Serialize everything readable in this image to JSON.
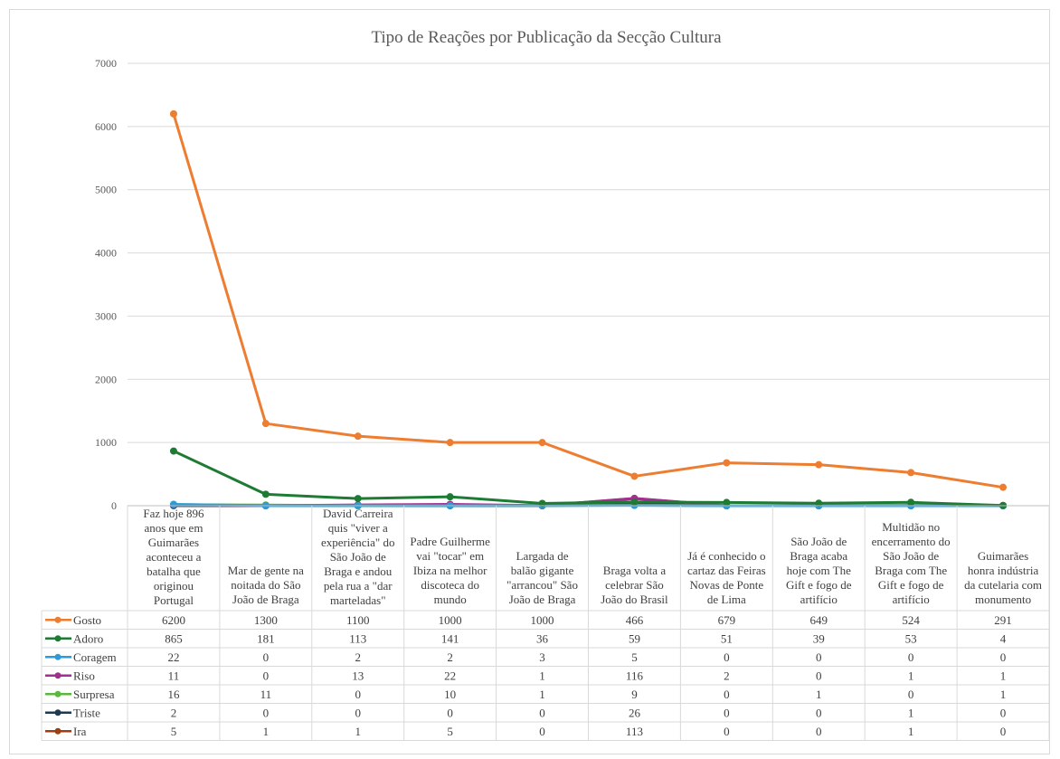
{
  "chart_data": {
    "type": "line",
    "title": "Tipo de Reações por Publicação da Secção Cultura",
    "ylim": [
      0,
      7000
    ],
    "yticks": [
      0,
      1000,
      2000,
      3000,
      4000,
      5000,
      6000,
      7000
    ],
    "grid": true,
    "legend": "data-table",
    "categories": [
      "Faz hoje 896 anos que em Guimarães aconteceu a batalha que originou Portugal",
      "Mar de gente na noitada do São João de Braga",
      "David Carreira quis \"viver a experiência\" do São João de Braga e andou pela rua a \"dar marteladas\"",
      "Padre Guilherme vai \"tocar\" em Ibiza na melhor discoteca do mundo",
      "Largada de balão gigante \"arrancou\" São João de Braga",
      "Braga volta a celebrar São João do Brasil",
      "Já é conhecido o cartaz das Feiras Novas de Ponte de Lima",
      "São João de Braga acaba hoje com The Gift e fogo de artifício",
      "Multidão no encerramento do São João de Braga com The Gift e fogo de artifício",
      "Guimarães honra indústria da cutelaria com monumento"
    ],
    "category_lines": [
      [
        "Faz hoje 896",
        "anos que em",
        "Guimarães",
        "aconteceu a",
        "batalha que",
        "originou",
        "Portugal"
      ],
      [
        "Mar de gente na",
        "noitada do São",
        "João de Braga"
      ],
      [
        "David Carreira",
        "quis \"viver a",
        "experiência\" do",
        "São João de",
        "Braga e andou",
        "pela rua a \"dar",
        "marteladas\""
      ],
      [
        "Padre Guilherme",
        "vai \"tocar\" em",
        "Ibiza na melhor",
        "discoteca do",
        "mundo"
      ],
      [
        "Largada de",
        "balão gigante",
        "\"arrancou\" São",
        "João de Braga"
      ],
      [
        "Braga volta a",
        "celebrar São",
        "João do Brasil"
      ],
      [
        "Já é conhecido o",
        "cartaz das Feiras",
        "Novas de Ponte",
        "de Lima"
      ],
      [
        "São João de",
        "Braga acaba",
        "hoje com The",
        "Gift e fogo de",
        "artifício"
      ],
      [
        "Multidão no",
        "encerramento do",
        "São João de",
        "Braga com The",
        "Gift e fogo de",
        "artifício"
      ],
      [
        "Guimarães",
        "honra indústria",
        "da cutelaria com",
        "monumento"
      ]
    ],
    "series": [
      {
        "name": "Gosto",
        "color": "#ED7D31",
        "values": [
          6200,
          1300,
          1100,
          1000,
          1000,
          466,
          679,
          649,
          524,
          291
        ]
      },
      {
        "name": "Adoro",
        "color": "#1E7B34",
        "values": [
          865,
          181,
          113,
          141,
          36,
          59,
          51,
          39,
          53,
          4
        ]
      },
      {
        "name": "Coragem",
        "color": "#2E9BD6",
        "values": [
          22,
          0,
          2,
          2,
          3,
          5,
          0,
          0,
          0,
          0
        ]
      },
      {
        "name": "Riso",
        "color": "#A0308F",
        "values": [
          11,
          0,
          13,
          22,
          1,
          116,
          2,
          0,
          1,
          1
        ]
      },
      {
        "name": "Surpresa",
        "color": "#5BB83E",
        "values": [
          16,
          11,
          0,
          10,
          1,
          9,
          0,
          1,
          0,
          1
        ]
      },
      {
        "name": "Triste",
        "color": "#1F3A4D",
        "values": [
          2,
          0,
          0,
          0,
          0,
          26,
          0,
          0,
          1,
          0
        ]
      },
      {
        "name": "Ira",
        "color": "#9C3F12",
        "values": [
          5,
          1,
          1,
          5,
          0,
          113,
          0,
          0,
          1,
          0
        ]
      }
    ]
  }
}
